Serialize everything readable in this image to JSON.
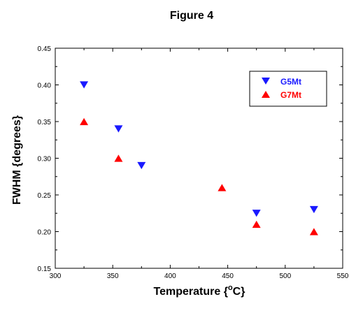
{
  "chart_data": {
    "type": "scatter",
    "title": "Figure 4",
    "xlabel": "Temperature {",
    "xlabel_sup": "o",
    "xlabel_tail": "C}",
    "ylabel": "FWHM {degrees}",
    "xlim": [
      300,
      550
    ],
    "ylim": [
      0.15,
      0.45
    ],
    "x_ticks": [
      300,
      350,
      400,
      450,
      500,
      550
    ],
    "x_tick_labels": [
      "300",
      "350",
      "400",
      "450",
      "500",
      "550"
    ],
    "y_ticks": [
      0.15,
      0.2,
      0.25,
      0.3,
      0.35,
      0.4,
      0.45
    ],
    "y_tick_labels": [
      "0.15",
      "0.20",
      "0.25",
      "0.30",
      "0.35",
      "0.40",
      "0.45"
    ],
    "grid": false,
    "legend_position": "top-right",
    "series": [
      {
        "name": "G5Mt",
        "color": "#1a1aff",
        "marker": "triangle-down",
        "points": [
          {
            "x": 325,
            "y": 0.4
          },
          {
            "x": 355,
            "y": 0.34
          },
          {
            "x": 375,
            "y": 0.29
          },
          {
            "x": 475,
            "y": 0.225
          },
          {
            "x": 525,
            "y": 0.23
          }
        ]
      },
      {
        "name": "G7Mt",
        "color": "#ff0000",
        "marker": "triangle-up",
        "points": [
          {
            "x": 325,
            "y": 0.35
          },
          {
            "x": 355,
            "y": 0.3
          },
          {
            "x": 445,
            "y": 0.26
          },
          {
            "x": 475,
            "y": 0.21
          },
          {
            "x": 525,
            "y": 0.2
          }
        ]
      }
    ]
  }
}
